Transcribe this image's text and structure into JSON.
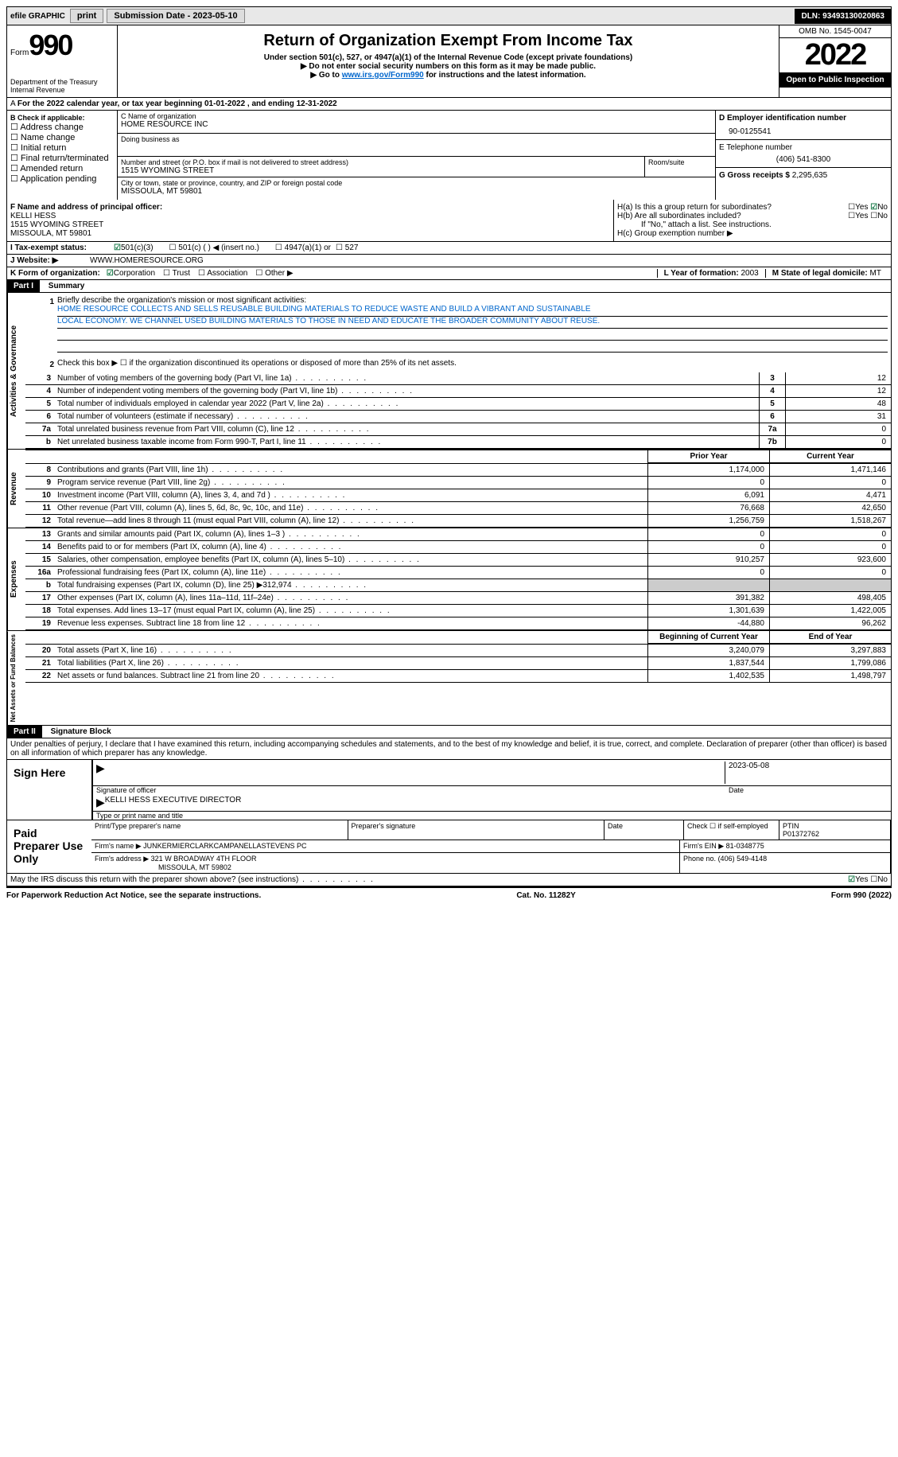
{
  "topbar": {
    "efile": "efile GRAPHIC",
    "print": "print",
    "submission": "Submission Date - 2023-05-10",
    "dln": "DLN: 93493130020863"
  },
  "header": {
    "form_label": "Form",
    "form_num": "990",
    "dept": "Department of the Treasury",
    "irs": "Internal Revenue",
    "title": "Return of Organization Exempt From Income Tax",
    "sub1": "Under section 501(c), 527, or 4947(a)(1) of the Internal Revenue Code (except private foundations)",
    "sub2": "▶ Do not enter social security numbers on this form as it may be made public.",
    "sub3_pre": "▶ Go to ",
    "sub3_link": "www.irs.gov/Form990",
    "sub3_post": " for instructions and the latest information.",
    "omb": "OMB No. 1545-0047",
    "year": "2022",
    "open": "Open to Public Inspection"
  },
  "row_a": "For the 2022 calendar year, or tax year beginning 01-01-2022   , and ending 12-31-2022",
  "section_b": {
    "label": "B Check if applicable:",
    "items": [
      "Address change",
      "Name change",
      "Initial return",
      "Final return/terminated",
      "Amended return",
      "Application pending"
    ]
  },
  "section_c": {
    "name_label": "C Name of organization",
    "name": "HOME RESOURCE INC",
    "dba_label": "Doing business as",
    "addr_label": "Number and street (or P.O. box if mail is not delivered to street address)",
    "room_label": "Room/suite",
    "addr": "1515 WYOMING STREET",
    "city_label": "City or town, state or province, country, and ZIP or foreign postal code",
    "city": "MISSOULA, MT  59801"
  },
  "section_d": {
    "ein_label": "D Employer identification number",
    "ein": "90-0125541",
    "phone_label": "E Telephone number",
    "phone": "(406) 541-8300",
    "gross_label": "G Gross receipts $",
    "gross": "2,295,635"
  },
  "section_f": {
    "label": "F  Name and address of principal officer:",
    "name": "KELLI HESS",
    "addr1": "1515 WYOMING STREET",
    "addr2": "MISSOULA, MT  59801"
  },
  "section_h": {
    "a": "H(a)  Is this a group return for subordinates?",
    "b": "H(b)  Are all subordinates included?",
    "note": "If \"No,\" attach a list. See instructions.",
    "c": "H(c)  Group exemption number ▶",
    "yes": "Yes",
    "no": "No"
  },
  "row_i": {
    "label": "I   Tax-exempt status:",
    "opt1": "501(c)(3)",
    "opt2": "501(c) (  ) ◀ (insert no.)",
    "opt3": "4947(a)(1) or",
    "opt4": "527"
  },
  "row_j": {
    "label": "J   Website: ▶",
    "value": "WWW.HOMERESOURCE.ORG"
  },
  "row_k": {
    "label": "K Form of organization:",
    "opts": [
      "Corporation",
      "Trust",
      "Association",
      "Other ▶"
    ],
    "l_label": "L Year of formation:",
    "l_val": "2003",
    "m_label": "M State of legal domicile:",
    "m_val": "MT"
  },
  "part1": {
    "header": "Part I",
    "title": "Summary",
    "q1_label": "Briefly describe the organization's mission or most significant activities:",
    "mission1": "HOME RESOURCE COLLECTS AND SELLS REUSABLE BUILDING MATERIALS TO REDUCE WASTE AND BUILD A VIBRANT AND SUSTAINABLE",
    "mission2": "LOCAL ECONOMY. WE CHANNEL USED BUILDING MATERIALS TO THOSE IN NEED AND EDUCATE THE BROADER COMMUNITY ABOUT REUSE.",
    "q2": "Check this box ▶ ☐ if the organization discontinued its operations or disposed of more than 25% of its net assets.",
    "governance_label": "Activities & Governance",
    "revenue_label": "Revenue",
    "expenses_label": "Expenses",
    "netassets_label": "Net Assets or Fund Balances",
    "rows_gov": [
      {
        "n": "3",
        "t": "Number of voting members of the governing body (Part VI, line 1a)",
        "box": "3",
        "v": "12"
      },
      {
        "n": "4",
        "t": "Number of independent voting members of the governing body (Part VI, line 1b)",
        "box": "4",
        "v": "12"
      },
      {
        "n": "5",
        "t": "Total number of individuals employed in calendar year 2022 (Part V, line 2a)",
        "box": "5",
        "v": "48"
      },
      {
        "n": "6",
        "t": "Total number of volunteers (estimate if necessary)",
        "box": "6",
        "v": "31"
      },
      {
        "n": "7a",
        "t": "Total unrelated business revenue from Part VIII, column (C), line 12",
        "box": "7a",
        "v": "0"
      },
      {
        "n": "b",
        "t": "Net unrelated business taxable income from Form 990-T, Part I, line 11",
        "box": "7b",
        "v": "0"
      }
    ],
    "prior_label": "Prior Year",
    "current_label": "Current Year",
    "rows_rev": [
      {
        "n": "8",
        "t": "Contributions and grants (Part VIII, line 1h)",
        "p": "1,174,000",
        "c": "1,471,146"
      },
      {
        "n": "9",
        "t": "Program service revenue (Part VIII, line 2g)",
        "p": "0",
        "c": "0"
      },
      {
        "n": "10",
        "t": "Investment income (Part VIII, column (A), lines 3, 4, and 7d )",
        "p": "6,091",
        "c": "4,471"
      },
      {
        "n": "11",
        "t": "Other revenue (Part VIII, column (A), lines 5, 6d, 8c, 9c, 10c, and 11e)",
        "p": "76,668",
        "c": "42,650"
      },
      {
        "n": "12",
        "t": "Total revenue—add lines 8 through 11 (must equal Part VIII, column (A), line 12)",
        "p": "1,256,759",
        "c": "1,518,267"
      }
    ],
    "rows_exp": [
      {
        "n": "13",
        "t": "Grants and similar amounts paid (Part IX, column (A), lines 1–3 )",
        "p": "0",
        "c": "0"
      },
      {
        "n": "14",
        "t": "Benefits paid to or for members (Part IX, column (A), line 4)",
        "p": "0",
        "c": "0"
      },
      {
        "n": "15",
        "t": "Salaries, other compensation, employee benefits (Part IX, column (A), lines 5–10)",
        "p": "910,257",
        "c": "923,600"
      },
      {
        "n": "16a",
        "t": "Professional fundraising fees (Part IX, column (A), line 11e)",
        "p": "0",
        "c": "0"
      },
      {
        "n": "b",
        "t": "Total fundraising expenses (Part IX, column (D), line 25) ▶312,974",
        "p": "",
        "c": "",
        "shaded": true
      },
      {
        "n": "17",
        "t": "Other expenses (Part IX, column (A), lines 11a–11d, 11f–24e)",
        "p": "391,382",
        "c": "498,405"
      },
      {
        "n": "18",
        "t": "Total expenses. Add lines 13–17 (must equal Part IX, column (A), line 25)",
        "p": "1,301,639",
        "c": "1,422,005"
      },
      {
        "n": "19",
        "t": "Revenue less expenses. Subtract line 18 from line 12",
        "p": "-44,880",
        "c": "96,262"
      }
    ],
    "begin_label": "Beginning of Current Year",
    "end_label": "End of Year",
    "rows_net": [
      {
        "n": "20",
        "t": "Total assets (Part X, line 16)",
        "p": "3,240,079",
        "c": "3,297,883"
      },
      {
        "n": "21",
        "t": "Total liabilities (Part X, line 26)",
        "p": "1,837,544",
        "c": "1,799,086"
      },
      {
        "n": "22",
        "t": "Net assets or fund balances. Subtract line 21 from line 20",
        "p": "1,402,535",
        "c": "1,498,797"
      }
    ]
  },
  "part2": {
    "header": "Part II",
    "title": "Signature Block",
    "declaration": "Under penalties of perjury, I declare that I have examined this return, including accompanying schedules and statements, and to the best of my knowledge and belief, it is true, correct, and complete. Declaration of preparer (other than officer) is based on all information of which preparer has any knowledge.",
    "sign_here": "Sign Here",
    "sig_officer": "Signature of officer",
    "sig_date": "2023-05-08",
    "date_label": "Date",
    "officer_name": "KELLI HESS  EXECUTIVE DIRECTOR",
    "type_name": "Type or print name and title",
    "paid_label": "Paid Preparer Use Only",
    "prep_name_label": "Print/Type preparer's name",
    "prep_sig_label": "Preparer's signature",
    "check_if": "Check ☐ if self-employed",
    "ptin_label": "PTIN",
    "ptin": "P01372762",
    "firm_name_label": "Firm's name    ▶",
    "firm_name": "JUNKERMIERCLARKCAMPANELLASTEVENS PC",
    "firm_ein_label": "Firm's EIN ▶",
    "firm_ein": "81-0348775",
    "firm_addr_label": "Firm's address ▶",
    "firm_addr1": "321 W BROADWAY 4TH FLOOR",
    "firm_addr2": "MISSOULA, MT  59802",
    "firm_phone_label": "Phone no.",
    "firm_phone": "(406) 549-4148",
    "discuss": "May the IRS discuss this return with the preparer shown above? (see instructions)"
  },
  "footer": {
    "left": "For Paperwork Reduction Act Notice, see the separate instructions.",
    "mid": "Cat. No. 11282Y",
    "right": "Form 990 (2022)"
  }
}
